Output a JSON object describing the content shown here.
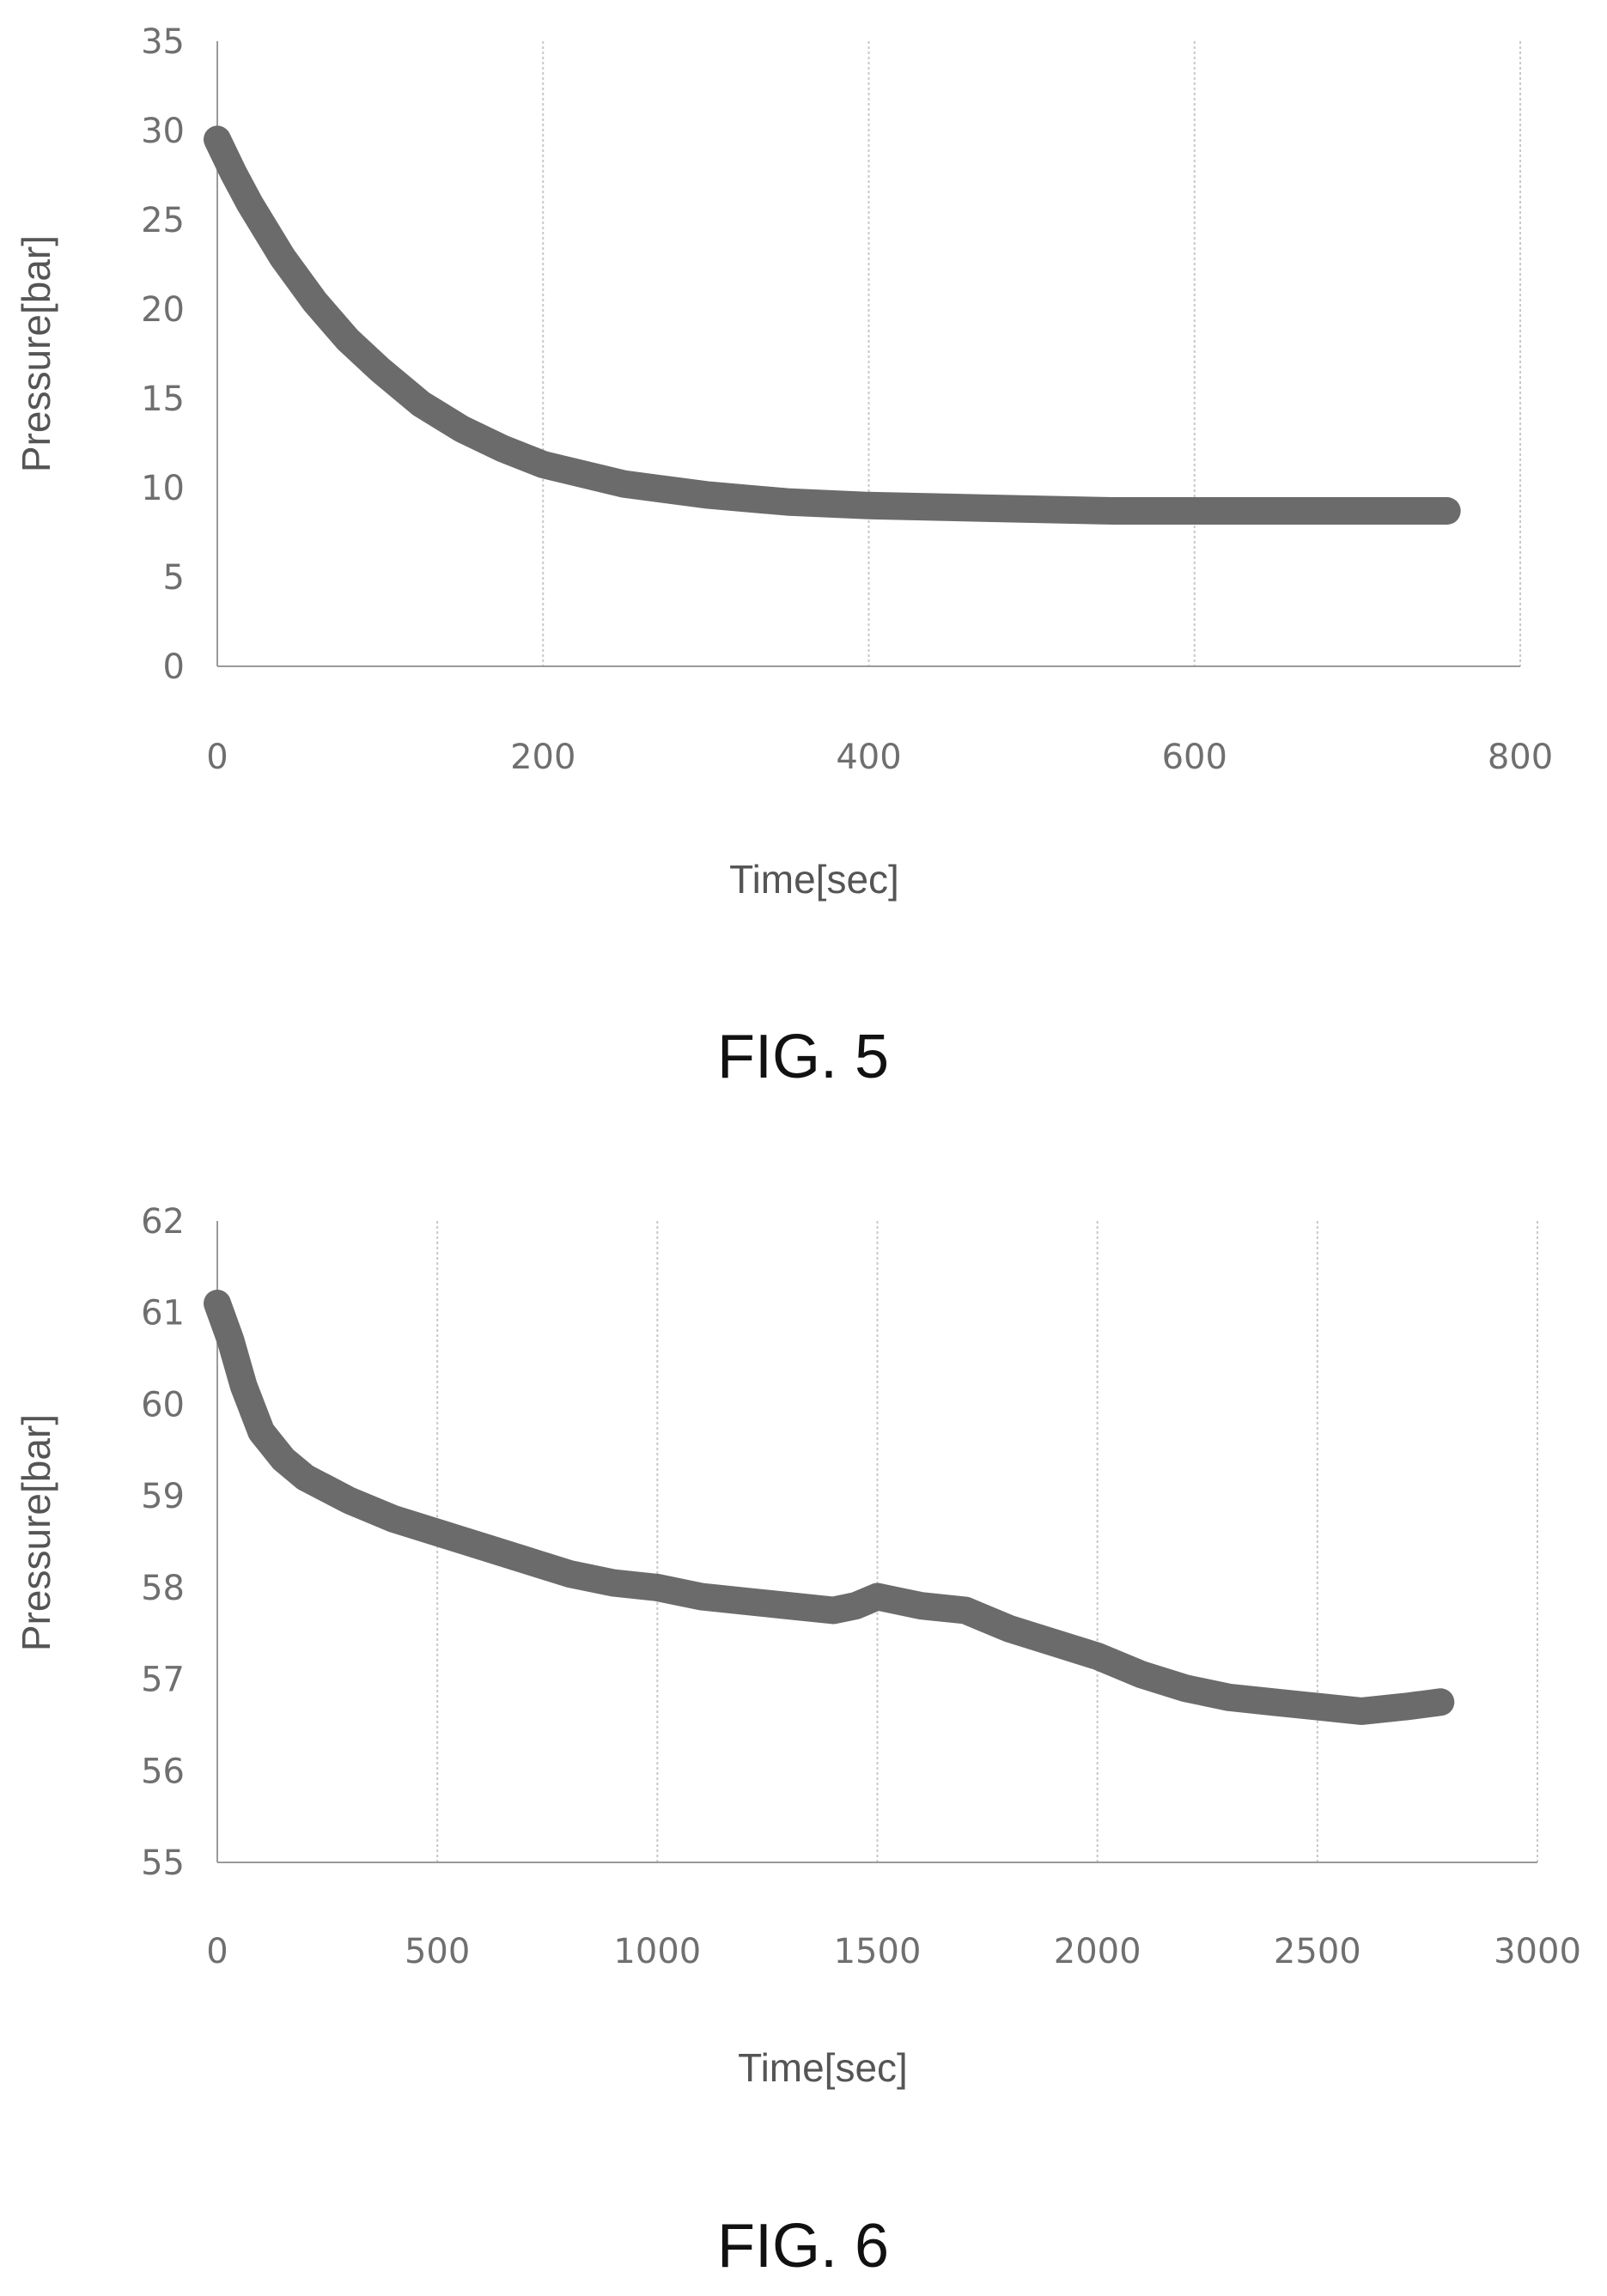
{
  "colors": {
    "series": "#6b6b6b",
    "grid": "#c8c8c8",
    "axis": "#9a9a9a",
    "text": "#6f6f6f"
  },
  "chart_data": [
    {
      "type": "line",
      "caption": "FIG. 5",
      "xlabel": "Time[sec]",
      "ylabel": "Pressure[bar]",
      "xlim": [
        0,
        800
      ],
      "ylim": [
        0,
        35
      ],
      "xticks": [
        0,
        200,
        400,
        600,
        800
      ],
      "yticks": [
        0,
        5,
        10,
        15,
        20,
        25,
        30,
        35
      ],
      "grid": "vertical",
      "legend": "none",
      "series": [
        {
          "x": [
            0,
            10,
            20,
            40,
            60,
            80,
            100,
            125,
            150,
            175,
            200,
            250,
            300,
            350,
            400,
            450,
            500,
            550,
            600,
            650,
            700,
            755
          ],
          "y": [
            29.5,
            27.6,
            25.9,
            22.9,
            20.4,
            18.3,
            16.6,
            14.7,
            13.3,
            12.2,
            11.3,
            10.2,
            9.6,
            9.2,
            9.0,
            8.9,
            8.8,
            8.7,
            8.7,
            8.7,
            8.7,
            8.7
          ]
        }
      ]
    },
    {
      "type": "line",
      "caption": "FIG. 6",
      "xlabel": "Time[sec]",
      "ylabel": "Pressure[bar]",
      "xlim": [
        0,
        3000
      ],
      "ylim": [
        55,
        62
      ],
      "xticks": [
        0,
        500,
        1000,
        1500,
        2000,
        2500,
        3000
      ],
      "yticks": [
        55,
        56,
        57,
        58,
        59,
        60,
        61,
        62
      ],
      "grid": "vertical",
      "legend": "none",
      "series": [
        {
          "x": [
            0,
            30,
            60,
            100,
            150,
            200,
            300,
            400,
            500,
            600,
            700,
            800,
            900,
            1000,
            1100,
            1200,
            1300,
            1400,
            1450,
            1500,
            1550,
            1600,
            1700,
            1800,
            1900,
            2000,
            2100,
            2200,
            2300,
            2400,
            2500,
            2600,
            2700,
            2780
          ],
          "y": [
            61.1,
            60.7,
            60.2,
            59.7,
            59.4,
            59.2,
            58.95,
            58.75,
            58.6,
            58.45,
            58.3,
            58.15,
            58.05,
            58.0,
            57.9,
            57.85,
            57.8,
            57.75,
            57.8,
            57.9,
            57.85,
            57.8,
            57.75,
            57.55,
            57.4,
            57.25,
            57.05,
            56.9,
            56.8,
            56.75,
            56.7,
            56.65,
            56.7,
            56.75
          ]
        }
      ]
    }
  ]
}
